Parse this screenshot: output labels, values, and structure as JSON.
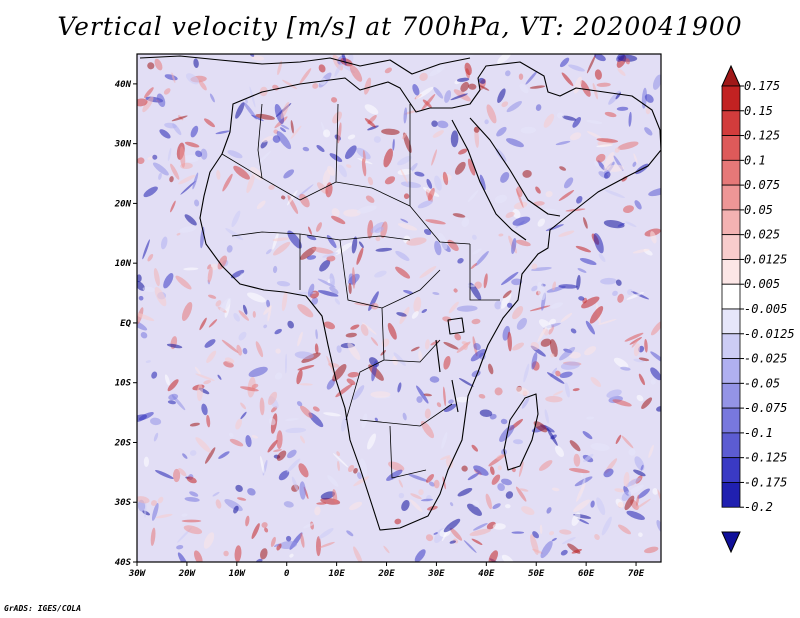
{
  "title": "Vertical velocity [m/s] at 700hPa, VT: 2020041900",
  "footer": "GrADS: IGES/COLA",
  "map": {
    "lon_range": [
      -30,
      75
    ],
    "lat_range": [
      -40,
      45
    ],
    "lon_ticks": [
      {
        "value": -30,
        "label": "30W"
      },
      {
        "value": -20,
        "label": "20W"
      },
      {
        "value": -10,
        "label": "10W"
      },
      {
        "value": 0,
        "label": "0"
      },
      {
        "value": 10,
        "label": "10E"
      },
      {
        "value": 20,
        "label": "20E"
      },
      {
        "value": 30,
        "label": "30E"
      },
      {
        "value": 40,
        "label": "40E"
      },
      {
        "value": 50,
        "label": "50E"
      },
      {
        "value": 60,
        "label": "60E"
      },
      {
        "value": 70,
        "label": "70E"
      }
    ],
    "lat_ticks": [
      {
        "value": 40,
        "label": "40N"
      },
      {
        "value": 30,
        "label": "30N"
      },
      {
        "value": 20,
        "label": "20N"
      },
      {
        "value": 10,
        "label": "10N"
      },
      {
        "value": 0,
        "label": "EQ"
      },
      {
        "value": -10,
        "label": "10S"
      },
      {
        "value": -20,
        "label": "20S"
      },
      {
        "value": -30,
        "label": "30S"
      },
      {
        "value": -40,
        "label": "40S"
      }
    ]
  },
  "colorbar": {
    "levels": [
      "0.175",
      "0.15",
      "0.125",
      "0.1",
      "0.075",
      "0.05",
      "0.025",
      "0.0125",
      "0.005",
      "-0.005",
      "-0.0125",
      "-0.025",
      "-0.05",
      "-0.075",
      "-0.1",
      "-0.125",
      "-0.175",
      "-0.2"
    ],
    "colors": [
      "#a01818",
      "#c22222",
      "#d23c3c",
      "#de5a5a",
      "#e67878",
      "#ee9696",
      "#f3b2b2",
      "#f8cccc",
      "#fce6e6",
      "#ffffff",
      "#e6e6fa",
      "#ccccf5",
      "#b0b0f0",
      "#9494e6",
      "#7878de",
      "#5c5cd2",
      "#3a3ac4",
      "#2020b0",
      "#10109a"
    ]
  }
}
